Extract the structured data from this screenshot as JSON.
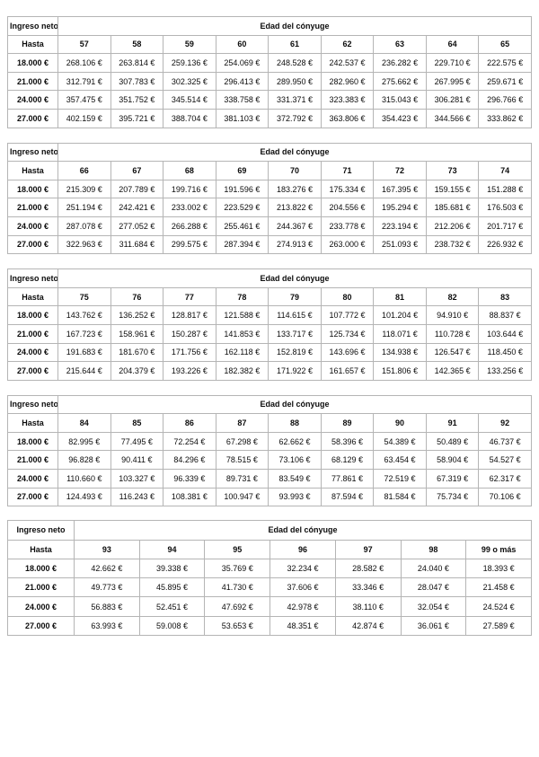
{
  "labels": {
    "income_header": "Ingreso neto",
    "age_header": "Edad del cónyuge",
    "up_to_label": "Hasta"
  },
  "colors": {
    "border": "#b5b5b5",
    "text": "#0c0c0c",
    "background": "#ffffff"
  },
  "tables": [
    {
      "ages": [
        "57",
        "58",
        "59",
        "60",
        "61",
        "62",
        "63",
        "64",
        "65"
      ],
      "rows": [
        {
          "income": "18.000 €",
          "values": [
            "268.106 €",
            "263.814 €",
            "259.136 €",
            "254.069 €",
            "248.528 €",
            "242.537 €",
            "236.282 €",
            "229.710 €",
            "222.575 €"
          ]
        },
        {
          "income": "21.000 €",
          "values": [
            "312.791 €",
            "307.783 €",
            "302.325 €",
            "296.413 €",
            "289.950 €",
            "282.960 €",
            "275.662 €",
            "267.995 €",
            "259.671 €"
          ]
        },
        {
          "income": "24.000 €",
          "values": [
            "357.475 €",
            "351.752 €",
            "345.514 €",
            "338.758 €",
            "331.371 €",
            "323.383 €",
            "315.043 €",
            "306.281 €",
            "296.766 €"
          ]
        },
        {
          "income": "27.000 €",
          "values": [
            "402.159 €",
            "395.721 €",
            "388.704 €",
            "381.103 €",
            "372.792 €",
            "363.806 €",
            "354.423 €",
            "344.566 €",
            "333.862 €"
          ]
        }
      ]
    },
    {
      "ages": [
        "66",
        "67",
        "68",
        "69",
        "70",
        "71",
        "72",
        "73",
        "74"
      ],
      "rows": [
        {
          "income": "18.000 €",
          "values": [
            "215.309 €",
            "207.789 €",
            "199.716 €",
            "191.596 €",
            "183.276 €",
            "175.334 €",
            "167.395 €",
            "159.155 €",
            "151.288 €"
          ]
        },
        {
          "income": "21.000 €",
          "values": [
            "251.194 €",
            "242.421 €",
            "233.002 €",
            "223.529 €",
            "213.822 €",
            "204.556 €",
            "195.294 €",
            "185.681 €",
            "176.503 €"
          ]
        },
        {
          "income": "24.000 €",
          "values": [
            "287.078 €",
            "277.052 €",
            "266.288 €",
            "255.461 €",
            "244.367 €",
            "233.778 €",
            "223.194 €",
            "212.206 €",
            "201.717 €"
          ]
        },
        {
          "income": "27.000 €",
          "values": [
            "322.963 €",
            "311.684 €",
            "299.575 €",
            "287.394 €",
            "274.913 €",
            "263.000 €",
            "251.093 €",
            "238.732 €",
            "226.932 €"
          ]
        }
      ]
    },
    {
      "ages": [
        "75",
        "76",
        "77",
        "78",
        "79",
        "80",
        "81",
        "82",
        "83"
      ],
      "rows": [
        {
          "income": "18.000 €",
          "values": [
            "143.762 €",
            "136.252 €",
            "128.817 €",
            "121.588 €",
            "114.615 €",
            "107.772 €",
            "101.204 €",
            "94.910 €",
            "88.837 €"
          ]
        },
        {
          "income": "21.000 €",
          "values": [
            "167.723 €",
            "158.961 €",
            "150.287 €",
            "141.853 €",
            "133.717 €",
            "125.734 €",
            "118.071 €",
            "110.728 €",
            "103.644 €"
          ]
        },
        {
          "income": "24.000 €",
          "values": [
            "191.683 €",
            "181.670 €",
            "171.756 €",
            "162.118 €",
            "152.819 €",
            "143.696 €",
            "134.938 €",
            "126.547 €",
            "118.450 €"
          ]
        },
        {
          "income": "27.000 €",
          "values": [
            "215.644 €",
            "204.379 €",
            "193.226 €",
            "182.382 €",
            "171.922 €",
            "161.657 €",
            "151.806 €",
            "142.365 €",
            "133.256 €"
          ]
        }
      ]
    },
    {
      "ages": [
        "84",
        "85",
        "86",
        "87",
        "88",
        "89",
        "90",
        "91",
        "92"
      ],
      "rows": [
        {
          "income": "18.000 €",
          "values": [
            "82.995 €",
            "77.495 €",
            "72.254 €",
            "67.298 €",
            "62.662 €",
            "58.396 €",
            "54.389 €",
            "50.489 €",
            "46.737 €"
          ]
        },
        {
          "income": "21.000 €",
          "values": [
            "96.828 €",
            "90.411 €",
            "84.296 €",
            "78.515 €",
            "73.106 €",
            "68.129 €",
            "63.454 €",
            "58.904 €",
            "54.527 €"
          ]
        },
        {
          "income": "24.000 €",
          "values": [
            "110.660 €",
            "103.327 €",
            "96.339 €",
            "89.731 €",
            "83.549 €",
            "77.861 €",
            "72.519 €",
            "67.319 €",
            "62.317 €"
          ]
        },
        {
          "income": "27.000 €",
          "values": [
            "124.493 €",
            "116.243 €",
            "108.381 €",
            "100.947 €",
            "93.993 €",
            "87.594 €",
            "81.584 €",
            "75.734 €",
            "70.106 €"
          ]
        }
      ]
    },
    {
      "ages": [
        "93",
        "94",
        "95",
        "96",
        "97",
        "98",
        "99 o más"
      ],
      "rows": [
        {
          "income": "18.000 €",
          "values": [
            "42.662 €",
            "39.338 €",
            "35.769 €",
            "32.234 €",
            "28.582 €",
            "24.040 €",
            "18.393 €"
          ]
        },
        {
          "income": "21.000 €",
          "values": [
            "49.773 €",
            "45.895 €",
            "41.730 €",
            "37.606 €",
            "33.346 €",
            "28.047 €",
            "21.458 €"
          ]
        },
        {
          "income": "24.000 €",
          "values": [
            "56.883 €",
            "52.451 €",
            "47.692 €",
            "42.978 €",
            "38.110 €",
            "32.054 €",
            "24.524 €"
          ]
        },
        {
          "income": "27.000 €",
          "values": [
            "63.993 €",
            "59.008 €",
            "53.653 €",
            "48.351 €",
            "42.874 €",
            "36.061 €",
            "27.589 €"
          ]
        }
      ]
    }
  ]
}
